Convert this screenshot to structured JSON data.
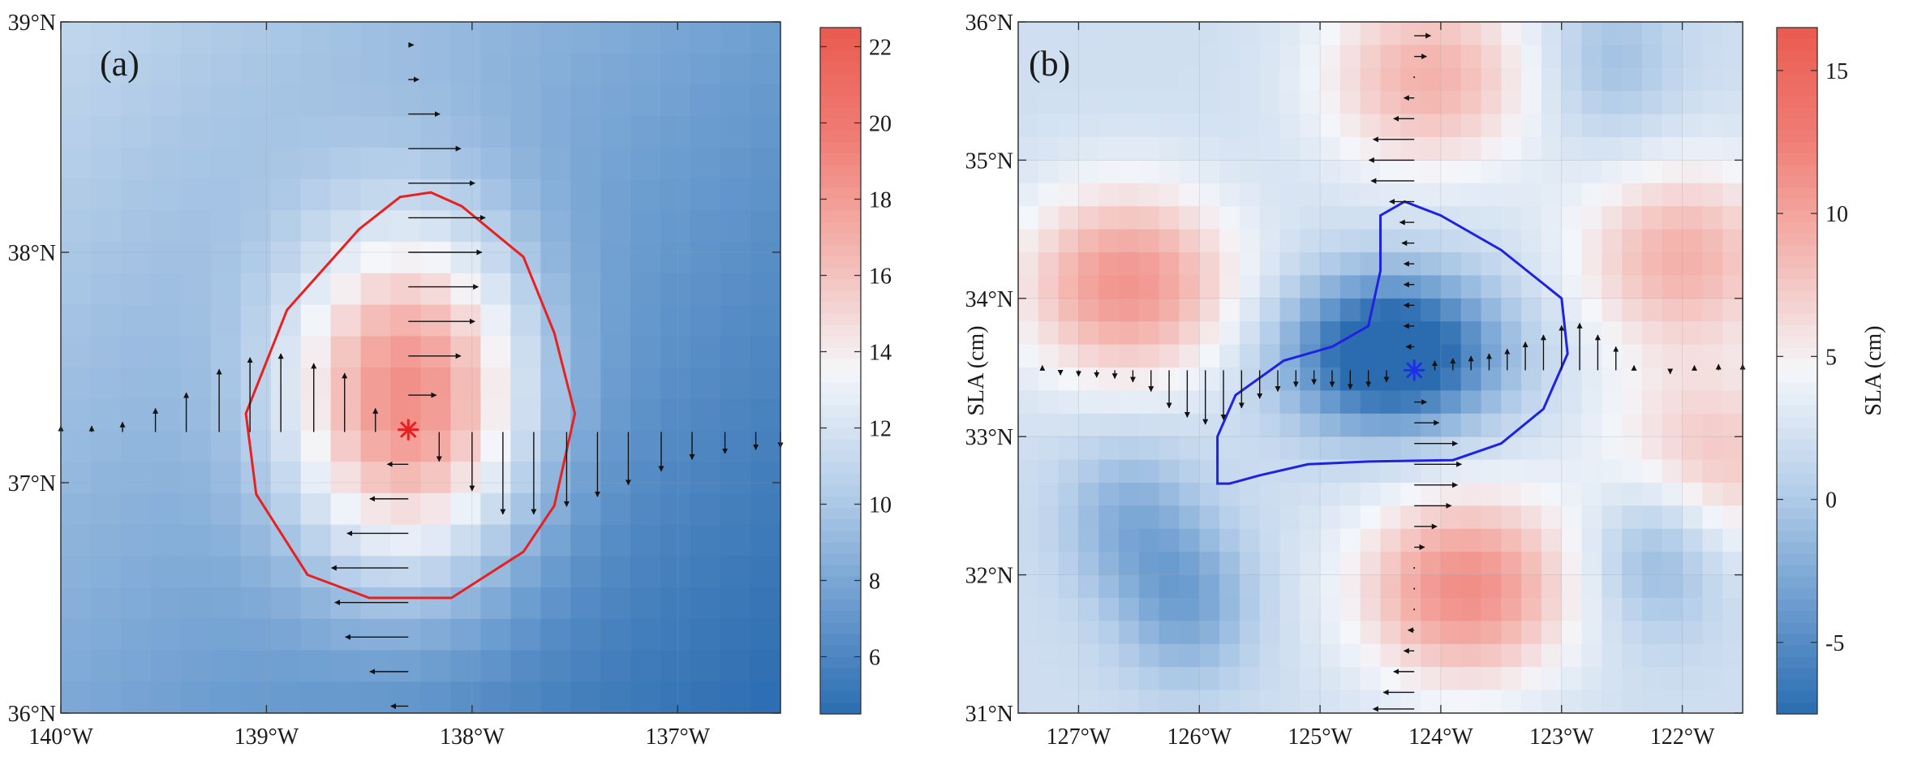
{
  "chart_data": [
    {
      "type": "heatmap",
      "panel_label": "(a)",
      "xlabel": "",
      "ylabel": "",
      "xlim": [
        -140.0,
        -136.5
      ],
      "ylim": [
        36.0,
        39.0
      ],
      "x_ticks": [
        -140,
        -139,
        -138,
        -137
      ],
      "x_tick_labels": [
        "140°W",
        "139°W",
        "138°W",
        "137°W"
      ],
      "y_ticks": [
        36,
        37,
        38,
        39
      ],
      "y_tick_labels": [
        "36°N",
        "37°N",
        "38°N",
        "39°N"
      ],
      "field": {
        "description": "sea level anomaly (cm), warm eddy",
        "grid_nx": 24,
        "grid_ny": 22,
        "background_levels": [
          11.0,
          4.5
        ],
        "eddy_center": [
          -138.3,
          37.35
        ],
        "eddy_amplitude": 11.0,
        "eddy_radius": [
          0.6,
          0.75
        ]
      },
      "colorbar": {
        "title": "",
        "range": [
          4.5,
          22.5
        ],
        "ticks": [
          6,
          8,
          10,
          12,
          14,
          16,
          18,
          20,
          22
        ],
        "tick_labels": [
          "6",
          "8",
          "10",
          "12",
          "14",
          "16",
          "18",
          "20",
          "22"
        ],
        "colors": [
          "#2b6cb0",
          "#6f9fd1",
          "#b8d0ea",
          "#f4f6fa",
          "#f4b9b3",
          "#f07f77",
          "#ea5a4f"
        ]
      },
      "center_marker": {
        "x": -138.31,
        "y": 37.23,
        "color": "#e81f1f"
      },
      "eddy_boundary": {
        "color": "#e82020",
        "points": [
          [
            -138.2,
            38.26
          ],
          [
            -138.05,
            38.2
          ],
          [
            -137.75,
            37.98
          ],
          [
            -137.6,
            37.65
          ],
          [
            -137.5,
            37.3
          ],
          [
            -137.6,
            36.9
          ],
          [
            -137.75,
            36.7
          ],
          [
            -138.1,
            36.5
          ],
          [
            -138.5,
            36.5
          ],
          [
            -138.8,
            36.6
          ],
          [
            -139.05,
            36.95
          ],
          [
            -139.1,
            37.3
          ],
          [
            -138.9,
            37.75
          ],
          [
            -138.55,
            38.1
          ],
          [
            -138.35,
            38.24
          ],
          [
            -138.2,
            38.26
          ]
        ]
      },
      "vectors_zonal_section": [
        {
          "x": -140.0,
          "y": 37.22,
          "v": 0.03
        },
        {
          "x": -139.85,
          "y": 37.22,
          "v": 0.03
        },
        {
          "x": -139.7,
          "y": 37.22,
          "v": 0.05
        },
        {
          "x": -139.54,
          "y": 37.22,
          "v": 0.12
        },
        {
          "x": -139.39,
          "y": 37.22,
          "v": 0.2
        },
        {
          "x": -139.23,
          "y": 37.22,
          "v": 0.32
        },
        {
          "x": -139.08,
          "y": 37.22,
          "v": 0.38
        },
        {
          "x": -138.93,
          "y": 37.22,
          "v": 0.4
        },
        {
          "x": -138.77,
          "y": 37.22,
          "v": 0.35
        },
        {
          "x": -138.62,
          "y": 37.22,
          "v": 0.3
        },
        {
          "x": -138.47,
          "y": 37.22,
          "v": 0.12
        },
        {
          "x": -138.16,
          "y": 37.22,
          "v": -0.15
        },
        {
          "x": -138.0,
          "y": 37.22,
          "v": -0.3
        },
        {
          "x": -137.85,
          "y": 37.22,
          "v": -0.42
        },
        {
          "x": -137.7,
          "y": 37.22,
          "v": -0.42
        },
        {
          "x": -137.54,
          "y": 37.22,
          "v": -0.38
        },
        {
          "x": -137.39,
          "y": 37.22,
          "v": -0.33
        },
        {
          "x": -137.24,
          "y": 37.22,
          "v": -0.27
        },
        {
          "x": -137.08,
          "y": 37.22,
          "v": -0.2
        },
        {
          "x": -136.93,
          "y": 37.22,
          "v": -0.14
        },
        {
          "x": -136.77,
          "y": 37.22,
          "v": -0.11
        },
        {
          "x": -136.62,
          "y": 37.22,
          "v": -0.09
        },
        {
          "x": -136.5,
          "y": 37.22,
          "v": -0.08
        }
      ],
      "vectors_meridional_section": [
        {
          "x": -138.31,
          "y": 38.9,
          "u": 0.03
        },
        {
          "x": -138.31,
          "y": 38.75,
          "u": 0.06
        },
        {
          "x": -138.31,
          "y": 38.6,
          "u": 0.18
        },
        {
          "x": -138.31,
          "y": 38.45,
          "u": 0.3
        },
        {
          "x": -138.31,
          "y": 38.3,
          "u": 0.38
        },
        {
          "x": -138.31,
          "y": 38.15,
          "u": 0.44
        },
        {
          "x": -138.31,
          "y": 38.0,
          "u": 0.42
        },
        {
          "x": -138.31,
          "y": 37.85,
          "u": 0.4
        },
        {
          "x": -138.31,
          "y": 37.7,
          "u": 0.38
        },
        {
          "x": -138.31,
          "y": 37.55,
          "u": 0.3
        },
        {
          "x": -138.31,
          "y": 37.38,
          "u": 0.16
        },
        {
          "x": -138.31,
          "y": 37.08,
          "u": -0.12
        },
        {
          "x": -138.31,
          "y": 36.93,
          "u": -0.22
        },
        {
          "x": -138.31,
          "y": 36.78,
          "u": -0.35
        },
        {
          "x": -138.31,
          "y": 36.63,
          "u": -0.44
        },
        {
          "x": -138.31,
          "y": 36.48,
          "u": -0.42
        },
        {
          "x": -138.31,
          "y": 36.33,
          "u": -0.36
        },
        {
          "x": -138.31,
          "y": 36.18,
          "u": -0.22
        },
        {
          "x": -138.31,
          "y": 36.03,
          "u": -0.1
        }
      ]
    },
    {
      "type": "heatmap",
      "panel_label": "(b)",
      "xlabel": "",
      "ylabel": "SLA (cm)",
      "xlim": [
        -127.5,
        -121.5
      ],
      "ylim": [
        31.0,
        36.0
      ],
      "x_ticks": [
        -127,
        -126,
        -125,
        -124,
        -123,
        -122
      ],
      "x_tick_labels": [
        "127°W",
        "126°W",
        "125°W",
        "124°W",
        "123°W",
        "122°W"
      ],
      "y_ticks": [
        31,
        32,
        33,
        34,
        35,
        36
      ],
      "y_tick_labels": [
        "31°N",
        "32°N",
        "33°N",
        "34°N",
        "35°N",
        "36°N"
      ],
      "field": {
        "description": "sea level anomaly (cm), cold eddy",
        "grid_nx": 36,
        "grid_ny": 30,
        "highs": [
          [
            -126.6,
            34.1,
            9.0
          ],
          [
            -123.8,
            31.9,
            9.5
          ],
          [
            -124.1,
            35.6,
            7.0
          ],
          [
            -122.0,
            34.3,
            7.0
          ],
          [
            -121.8,
            32.8,
            6.0
          ]
        ],
        "lows": [
          [
            -124.4,
            33.6,
            13.0
          ],
          [
            -126.1,
            31.8,
            5.0
          ],
          [
            -122.2,
            32.2,
            5.0
          ],
          [
            -126.6,
            32.4,
            4.0
          ],
          [
            -122.6,
            35.7,
            3.0
          ]
        ]
      },
      "colorbar": {
        "title": "SLA (cm)",
        "range": [
          -7.5,
          16.5
        ],
        "ticks": [
          -5,
          0,
          5,
          10,
          15
        ],
        "tick_labels": [
          "-5",
          "0",
          "5",
          "10",
          "15"
        ],
        "colors": [
          "#2b6cb0",
          "#6f9fd1",
          "#b8d0ea",
          "#f4f6fa",
          "#f4b9b3",
          "#f07f77",
          "#ea5a4f"
        ]
      },
      "center_marker": {
        "x": -124.22,
        "y": 33.48,
        "color": "#1f2fe8"
      },
      "eddy_boundary": {
        "color": "#1f22e0",
        "points": [
          [
            -124.3,
            34.7
          ],
          [
            -124.0,
            34.6
          ],
          [
            -123.5,
            34.35
          ],
          [
            -123.0,
            34.0
          ],
          [
            -122.95,
            33.6
          ],
          [
            -123.15,
            33.2
          ],
          [
            -123.5,
            32.95
          ],
          [
            -123.9,
            32.83
          ],
          [
            -124.6,
            32.82
          ],
          [
            -125.1,
            32.8
          ],
          [
            -125.5,
            32.72
          ],
          [
            -125.75,
            32.66
          ],
          [
            -125.85,
            32.66
          ],
          [
            -125.85,
            33.0
          ],
          [
            -125.7,
            33.3
          ],
          [
            -125.3,
            33.55
          ],
          [
            -124.9,
            33.65
          ],
          [
            -124.6,
            33.8
          ],
          [
            -124.5,
            34.2
          ],
          [
            -124.5,
            34.6
          ],
          [
            -124.3,
            34.7
          ]
        ]
      },
      "vectors_zonal_section": [
        {
          "x": -127.3,
          "y": 33.48,
          "v": 0.04
        },
        {
          "x": -127.15,
          "y": 33.48,
          "v": -0.04
        },
        {
          "x": -127.0,
          "y": 33.48,
          "v": -0.05
        },
        {
          "x": -126.85,
          "y": 33.48,
          "v": -0.06
        },
        {
          "x": -126.7,
          "y": 33.48,
          "v": -0.07
        },
        {
          "x": -126.55,
          "y": 33.48,
          "v": -0.1
        },
        {
          "x": -126.4,
          "y": 33.48,
          "v": -0.18
        },
        {
          "x": -126.25,
          "y": 33.48,
          "v": -0.32
        },
        {
          "x": -126.1,
          "y": 33.48,
          "v": -0.4
        },
        {
          "x": -125.95,
          "y": 33.48,
          "v": -0.46
        },
        {
          "x": -125.8,
          "y": 33.48,
          "v": -0.42
        },
        {
          "x": -125.65,
          "y": 33.48,
          "v": -0.32
        },
        {
          "x": -125.5,
          "y": 33.48,
          "v": -0.24
        },
        {
          "x": -125.35,
          "y": 33.48,
          "v": -0.18
        },
        {
          "x": -125.2,
          "y": 33.48,
          "v": -0.14
        },
        {
          "x": -125.05,
          "y": 33.48,
          "v": -0.12
        },
        {
          "x": -124.9,
          "y": 33.48,
          "v": -0.14
        },
        {
          "x": -124.75,
          "y": 33.48,
          "v": -0.16
        },
        {
          "x": -124.6,
          "y": 33.48,
          "v": -0.14
        },
        {
          "x": -124.45,
          "y": 33.48,
          "v": -0.1
        },
        {
          "x": -124.05,
          "y": 33.48,
          "v": 0.08
        },
        {
          "x": -123.9,
          "y": 33.48,
          "v": 0.1
        },
        {
          "x": -123.75,
          "y": 33.48,
          "v": 0.12
        },
        {
          "x": -123.6,
          "y": 33.48,
          "v": 0.14
        },
        {
          "x": -123.45,
          "y": 33.48,
          "v": 0.18
        },
        {
          "x": -123.3,
          "y": 33.48,
          "v": 0.24
        },
        {
          "x": -123.15,
          "y": 33.48,
          "v": 0.3
        },
        {
          "x": -123.0,
          "y": 33.48,
          "v": 0.38
        },
        {
          "x": -122.85,
          "y": 33.48,
          "v": 0.4
        },
        {
          "x": -122.7,
          "y": 33.48,
          "v": 0.3
        },
        {
          "x": -122.55,
          "y": 33.48,
          "v": 0.2
        },
        {
          "x": -122.4,
          "y": 33.48,
          "v": 0.04
        },
        {
          "x": -122.1,
          "y": 33.48,
          "v": -0.03
        },
        {
          "x": -121.9,
          "y": 33.48,
          "v": 0.04
        },
        {
          "x": -121.7,
          "y": 33.48,
          "v": 0.05
        },
        {
          "x": -121.5,
          "y": 33.48,
          "v": 0.05
        }
      ],
      "vectors_meridional_section": [
        {
          "x": -124.22,
          "y": 35.9,
          "u": 0.16
        },
        {
          "x": -124.22,
          "y": 35.75,
          "u": 0.12
        },
        {
          "x": -124.22,
          "y": 35.6,
          "u": 0.02
        },
        {
          "x": -124.22,
          "y": 35.45,
          "u": -0.1
        },
        {
          "x": -124.22,
          "y": 35.3,
          "u": -0.2
        },
        {
          "x": -124.22,
          "y": 35.15,
          "u": -0.4
        },
        {
          "x": -124.22,
          "y": 35.0,
          "u": -0.44
        },
        {
          "x": -124.22,
          "y": 34.85,
          "u": -0.42
        },
        {
          "x": -124.22,
          "y": 34.7,
          "u": -0.24
        },
        {
          "x": -124.22,
          "y": 34.55,
          "u": -0.14
        },
        {
          "x": -124.22,
          "y": 34.4,
          "u": -0.12
        },
        {
          "x": -124.22,
          "y": 34.25,
          "u": -0.1
        },
        {
          "x": -124.22,
          "y": 34.1,
          "u": -0.1
        },
        {
          "x": -124.22,
          "y": 33.95,
          "u": -0.1
        },
        {
          "x": -124.22,
          "y": 33.8,
          "u": -0.1
        },
        {
          "x": -124.22,
          "y": 33.65,
          "u": -0.08
        },
        {
          "x": -124.22,
          "y": 33.25,
          "u": 0.12
        },
        {
          "x": -124.22,
          "y": 33.1,
          "u": 0.24
        },
        {
          "x": -124.22,
          "y": 32.95,
          "u": 0.42
        },
        {
          "x": -124.22,
          "y": 32.8,
          "u": 0.46
        },
        {
          "x": -124.22,
          "y": 32.65,
          "u": 0.42
        },
        {
          "x": -124.22,
          "y": 32.5,
          "u": 0.36
        },
        {
          "x": -124.22,
          "y": 32.35,
          "u": 0.22
        },
        {
          "x": -124.22,
          "y": 32.2,
          "u": 0.1
        },
        {
          "x": -124.22,
          "y": 32.05,
          "u": 0.02
        },
        {
          "x": -124.22,
          "y": 31.9,
          "u": 0.01
        },
        {
          "x": -124.22,
          "y": 31.75,
          "u": -0.02
        },
        {
          "x": -124.22,
          "y": 31.6,
          "u": -0.06
        },
        {
          "x": -124.22,
          "y": 31.45,
          "u": -0.1
        },
        {
          "x": -124.22,
          "y": 31.3,
          "u": -0.2
        },
        {
          "x": -124.22,
          "y": 31.15,
          "u": -0.3
        },
        {
          "x": -124.22,
          "y": 31.03,
          "u": -0.4
        }
      ]
    }
  ]
}
